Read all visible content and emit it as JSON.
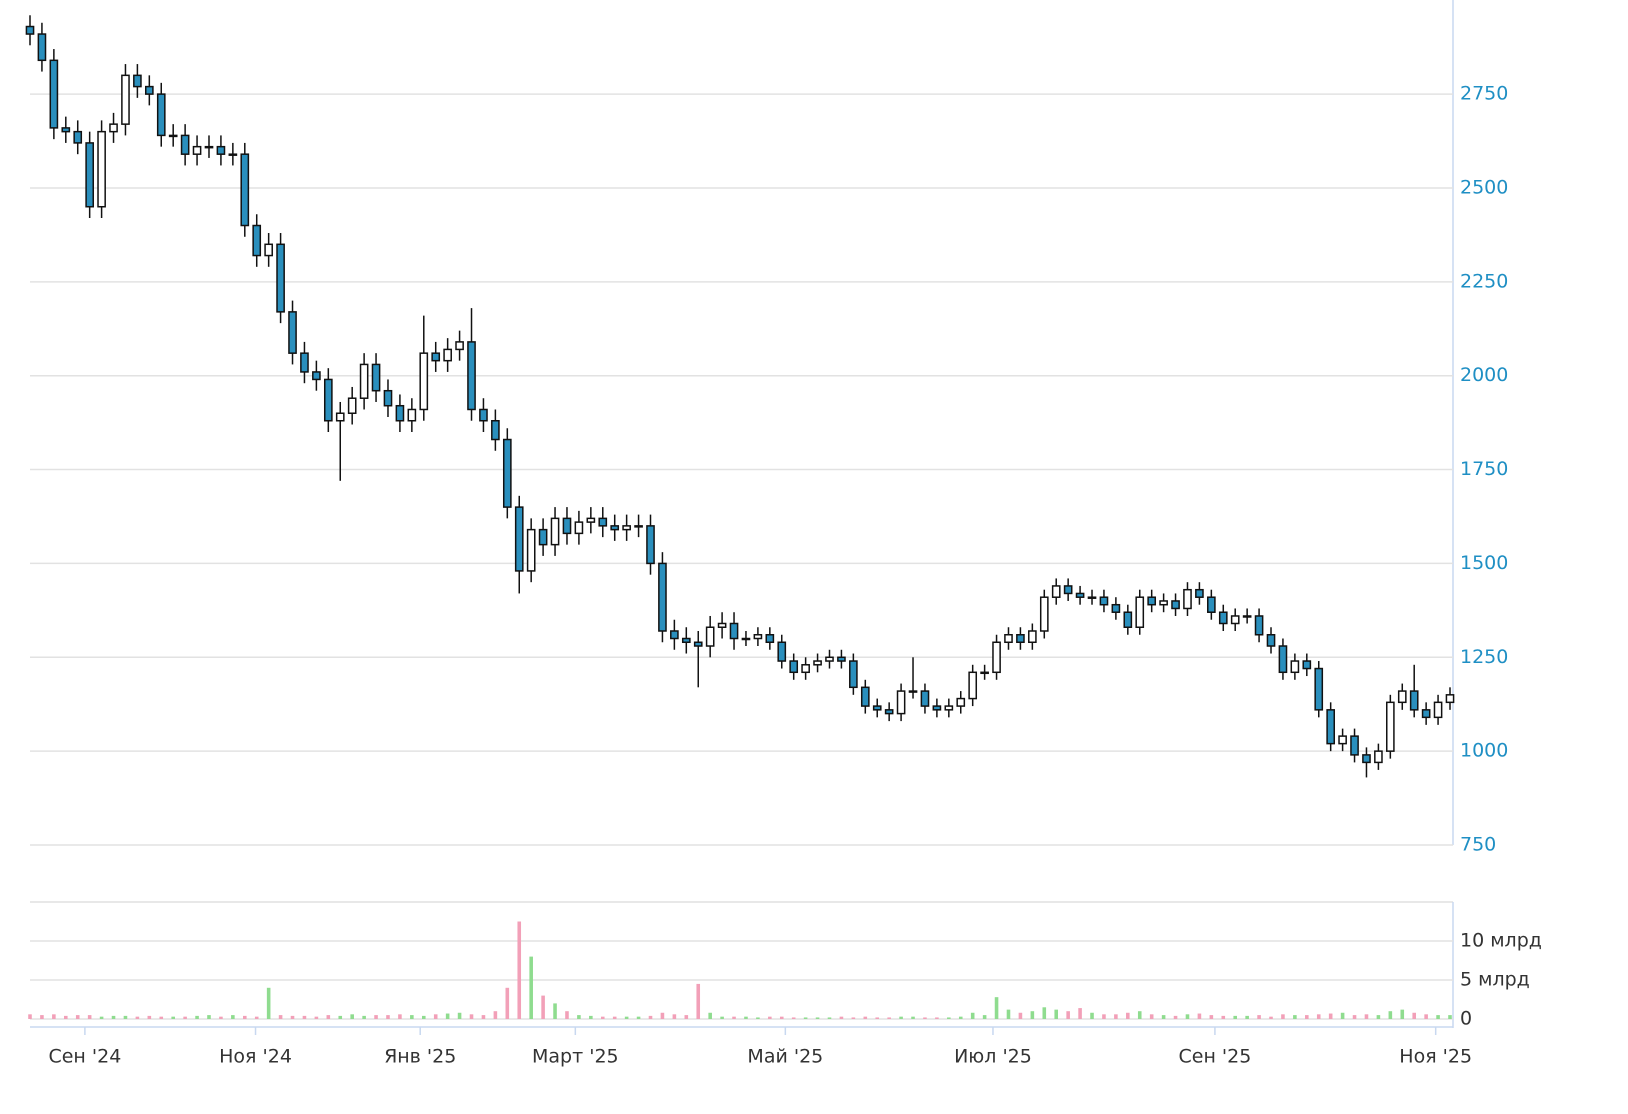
{
  "chart_data": {
    "type": "candlestick",
    "xlim": [
      0,
      119
    ],
    "xticks": [
      {
        "value": 4.6,
        "label": "Сен '24"
      },
      {
        "value": 18.9,
        "label": "Ноя '24"
      },
      {
        "value": 32.7,
        "label": "Янв '25"
      },
      {
        "value": 45.7,
        "label": "Март '25"
      },
      {
        "value": 63.3,
        "label": "Май '25"
      },
      {
        "value": 80.7,
        "label": "Июл '25"
      },
      {
        "value": 99.3,
        "label": "Сен '25"
      },
      {
        "value": 117.8,
        "label": "Ноя '25"
      }
    ],
    "ylim": [
      750,
      2990
    ],
    "yticks": [
      750,
      1000,
      1250,
      1500,
      1750,
      2000,
      2250,
      2500,
      2750
    ],
    "up_color": "#ffffff",
    "down_color": "#2a8fbd",
    "open": [
      2930,
      2910,
      2840,
      2660,
      2650,
      2620,
      2450,
      2650,
      2670,
      2800,
      2770,
      2750,
      2640,
      2640,
      2590,
      2610,
      2610,
      2590,
      2590,
      2400,
      2320,
      2350,
      2170,
      2060,
      2010,
      1990,
      1880,
      1900,
      1940,
      2030,
      1960,
      1920,
      1880,
      1910,
      2060,
      2040,
      2070,
      2090,
      1910,
      1880,
      1830,
      1650,
      1480,
      1590,
      1550,
      1620,
      1580,
      1610,
      1620,
      1600,
      1590,
      1600,
      1600,
      1500,
      1320,
      1300,
      1290,
      1280,
      1330,
      1340,
      1300,
      1300,
      1310,
      1290,
      1240,
      1210,
      1230,
      1240,
      1250,
      1240,
      1170,
      1120,
      1110,
      1100,
      1160,
      1160,
      1120,
      1110,
      1120,
      1140,
      1210,
      1210,
      1290,
      1310,
      1290,
      1320,
      1410,
      1440,
      1420,
      1410,
      1410,
      1390,
      1370,
      1330,
      1410,
      1390,
      1400,
      1380,
      1430,
      1410,
      1370,
      1340,
      1360,
      1360,
      1310,
      1280,
      1210,
      1240,
      1220,
      1110,
      1020,
      1040,
      990,
      970,
      1000,
      1130,
      1160,
      1110,
      1090,
      1130
    ],
    "high": [
      2960,
      2940,
      2870,
      2690,
      2680,
      2650,
      2680,
      2700,
      2830,
      2830,
      2800,
      2780,
      2670,
      2670,
      2640,
      2640,
      2640,
      2620,
      2620,
      2430,
      2380,
      2380,
      2200,
      2090,
      2040,
      2020,
      1930,
      1970,
      2060,
      2060,
      1990,
      1950,
      1940,
      2160,
      2090,
      2100,
      2120,
      2180,
      1940,
      1910,
      1860,
      1680,
      1620,
      1620,
      1650,
      1650,
      1640,
      1650,
      1650,
      1630,
      1630,
      1630,
      1630,
      1530,
      1350,
      1330,
      1320,
      1360,
      1370,
      1370,
      1320,
      1330,
      1330,
      1310,
      1260,
      1250,
      1260,
      1270,
      1270,
      1260,
      1190,
      1140,
      1130,
      1180,
      1250,
      1180,
      1140,
      1140,
      1160,
      1230,
      1230,
      1310,
      1330,
      1330,
      1340,
      1430,
      1460,
      1460,
      1440,
      1430,
      1430,
      1410,
      1390,
      1430,
      1430,
      1420,
      1420,
      1450,
      1450,
      1430,
      1390,
      1380,
      1380,
      1380,
      1330,
      1300,
      1260,
      1260,
      1240,
      1130,
      1060,
      1060,
      1010,
      1020,
      1150,
      1180,
      1230,
      1130,
      1150,
      1170
    ],
    "low": [
      2880,
      2810,
      2630,
      2620,
      2590,
      2420,
      2420,
      2620,
      2640,
      2740,
      2720,
      2610,
      2610,
      2560,
      2560,
      2580,
      2560,
      2560,
      2370,
      2290,
      2290,
      2140,
      2030,
      1980,
      1960,
      1850,
      1720,
      1870,
      1910,
      1930,
      1890,
      1850,
      1850,
      1880,
      2010,
      2010,
      2040,
      1880,
      1850,
      1800,
      1620,
      1420,
      1450,
      1520,
      1520,
      1550,
      1550,
      1580,
      1570,
      1560,
      1560,
      1570,
      1470,
      1290,
      1270,
      1260,
      1170,
      1250,
      1300,
      1270,
      1280,
      1280,
      1270,
      1220,
      1190,
      1190,
      1210,
      1220,
      1220,
      1150,
      1100,
      1090,
      1080,
      1080,
      1140,
      1100,
      1090,
      1090,
      1100,
      1120,
      1190,
      1190,
      1270,
      1270,
      1270,
      1300,
      1390,
      1400,
      1390,
      1390,
      1370,
      1350,
      1310,
      1310,
      1370,
      1370,
      1360,
      1360,
      1390,
      1350,
      1320,
      1320,
      1340,
      1290,
      1260,
      1190,
      1190,
      1200,
      1090,
      1000,
      1000,
      970,
      930,
      950,
      980,
      1110,
      1090,
      1070,
      1070,
      1110
    ],
    "close": [
      2910,
      2840,
      2660,
      2650,
      2620,
      2450,
      2650,
      2670,
      2800,
      2770,
      2750,
      2640,
      2640,
      2590,
      2610,
      2610,
      2590,
      2590,
      2400,
      2320,
      2350,
      2170,
      2060,
      2010,
      1990,
      1880,
      1900,
      1940,
      2030,
      1960,
      1920,
      1880,
      1910,
      2060,
      2040,
      2070,
      2090,
      1910,
      1880,
      1830,
      1650,
      1480,
      1590,
      1550,
      1620,
      1580,
      1610,
      1620,
      1600,
      1590,
      1600,
      1600,
      1500,
      1320,
      1300,
      1290,
      1280,
      1330,
      1340,
      1300,
      1300,
      1310,
      1290,
      1240,
      1210,
      1230,
      1240,
      1250,
      1240,
      1170,
      1120,
      1110,
      1100,
      1160,
      1160,
      1120,
      1110,
      1120,
      1140,
      1210,
      1210,
      1290,
      1310,
      1290,
      1320,
      1410,
      1440,
      1420,
      1410,
      1410,
      1390,
      1370,
      1330,
      1410,
      1390,
      1400,
      1380,
      1430,
      1410,
      1370,
      1340,
      1360,
      1360,
      1310,
      1280,
      1210,
      1240,
      1220,
      1110,
      1020,
      1040,
      990,
      970,
      1000,
      1130,
      1160,
      1110,
      1090,
      1130,
      1150
    ],
    "volume": {
      "ylim": [
        0,
        15000000000.0
      ],
      "yticks": [
        0,
        {
          "value": 5000000000.0,
          "label": "5 млрд"
        },
        {
          "value": 10000000000.0,
          "label": "10 млрд"
        }
      ],
      "up_color": "#8fdc8f",
      "down_color": "#f2a0b8",
      "values": [
        600000000.0,
        500000000.0,
        600000000.0,
        400000000.0,
        500000000.0,
        500000000.0,
        300000000.0,
        400000000.0,
        400000000.0,
        300000000.0,
        400000000.0,
        300000000.0,
        300000000.0,
        300000000.0,
        400000000.0,
        500000000.0,
        300000000.0,
        500000000.0,
        400000000.0,
        300000000.0,
        4000000000.0,
        500000000.0,
        400000000.0,
        400000000.0,
        300000000.0,
        500000000.0,
        400000000.0,
        600000000.0,
        400000000.0,
        500000000.0,
        500000000.0,
        600000000.0,
        500000000.0,
        400000000.0,
        600000000.0,
        700000000.0,
        800000000.0,
        600000000.0,
        500000000.0,
        1000000000.0,
        4000000000.0,
        12500000000.0,
        8000000000.0,
        3000000000.0,
        2000000000.0,
        1000000000.0,
        500000000.0,
        400000000.0,
        300000000.0,
        300000000.0,
        300000000.0,
        300000000.0,
        400000000.0,
        800000000.0,
        600000000.0,
        500000000.0,
        4500000000.0,
        800000000.0,
        300000000.0,
        300000000.0,
        300000000.0,
        200000000.0,
        300000000.0,
        300000000.0,
        200000000.0,
        200000000.0,
        200000000.0,
        200000000.0,
        300000000.0,
        200000000.0,
        300000000.0,
        200000000.0,
        200000000.0,
        300000000.0,
        300000000.0,
        200000000.0,
        200000000.0,
        200000000.0,
        300000000.0,
        800000000.0,
        500000000.0,
        2800000000.0,
        1200000000.0,
        800000000.0,
        1000000000.0,
        1500000000.0,
        1200000000.0,
        1000000000.0,
        1400000000.0,
        800000000.0,
        600000000.0,
        600000000.0,
        800000000.0,
        1000000000.0,
        600000000.0,
        500000000.0,
        400000000.0,
        600000000.0,
        700000000.0,
        500000000.0,
        400000000.0,
        400000000.0,
        400000000.0,
        500000000.0,
        300000000.0,
        600000000.0,
        500000000.0,
        500000000.0,
        600000000.0,
        700000000.0,
        800000000.0,
        500000000.0,
        600000000.0,
        500000000.0,
        1000000000.0,
        1200000000.0,
        800000000.0,
        600000000.0,
        500000000.0,
        500000000.0
      ]
    }
  }
}
